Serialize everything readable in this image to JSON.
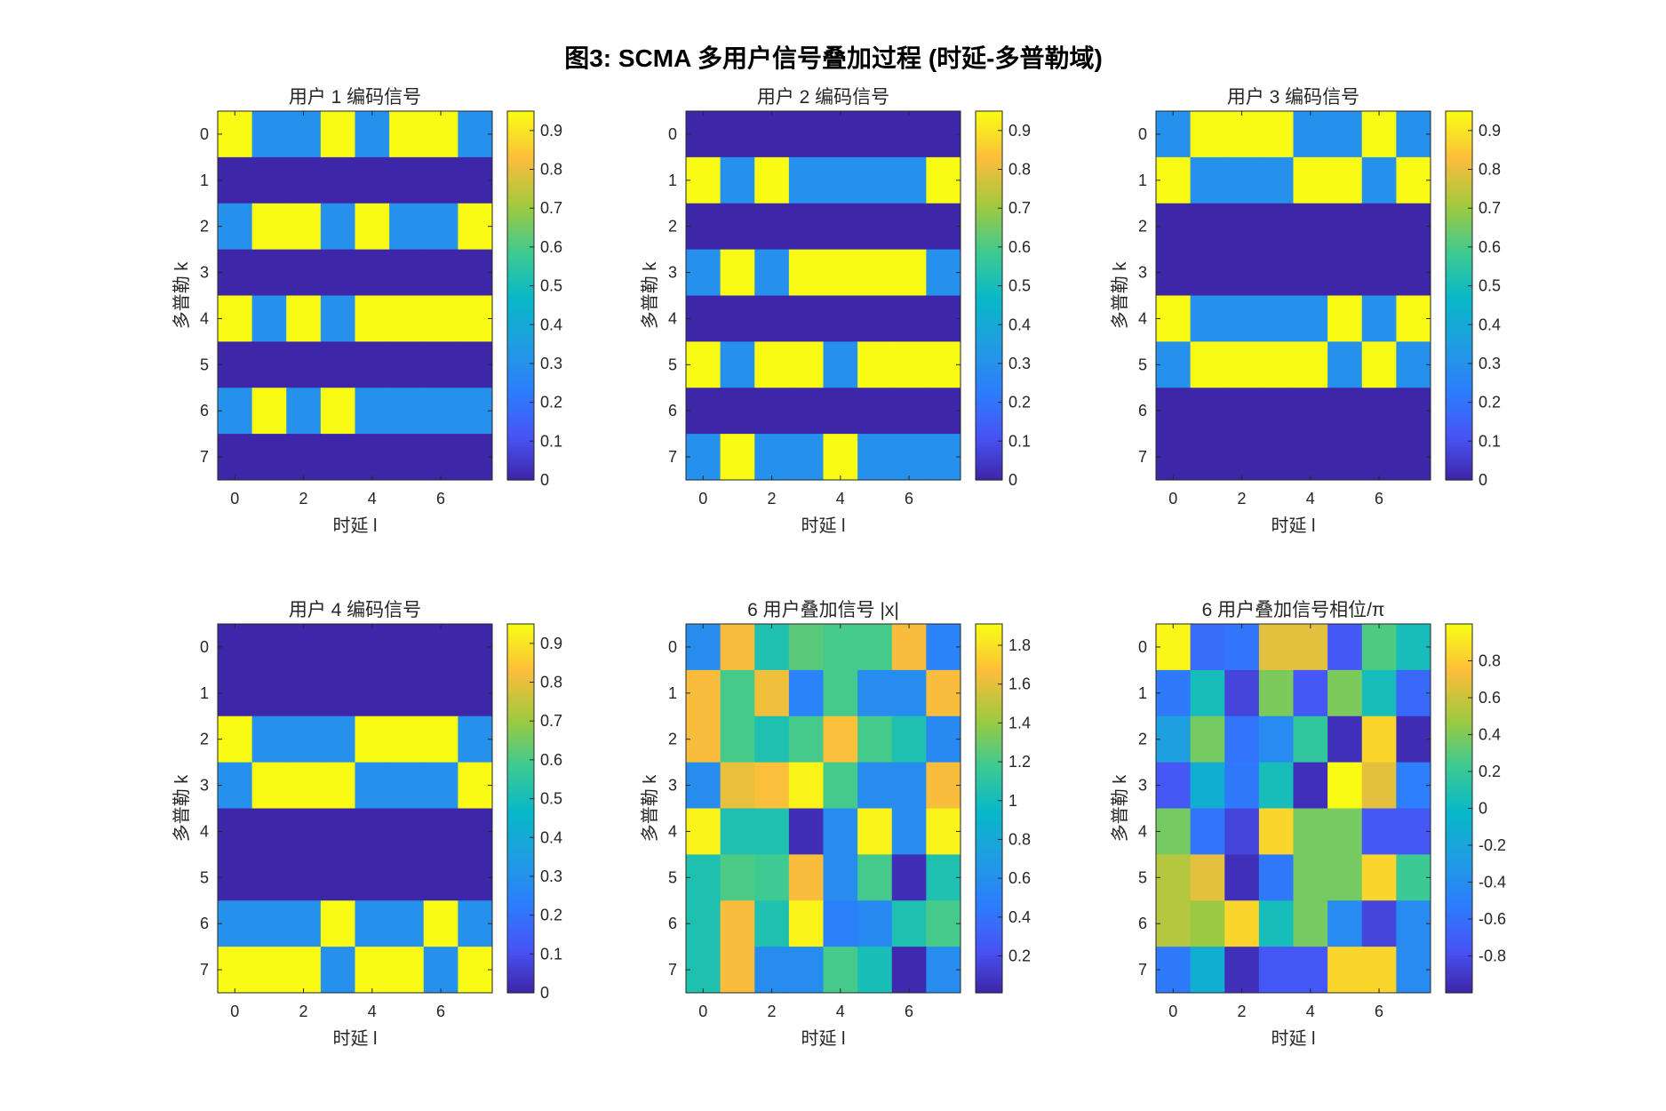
{
  "figure": {
    "title": "图3: SCMA 多用户信号叠加过程 (时延-多普勒域)"
  },
  "chart_data": [
    {
      "type": "heatmap",
      "title": "用户 1 编码信号",
      "xlabel": "时延 l",
      "ylabel": "多普勒 k",
      "xticks": [
        0,
        2,
        4,
        6
      ],
      "yticks": [
        0,
        1,
        2,
        3,
        4,
        5,
        6,
        7
      ],
      "y_direction": "reverse",
      "colormap": "parula",
      "clim": [
        0,
        0.95
      ],
      "colorbar_ticks": [
        0,
        0.1,
        0.2,
        0.3,
        0.4,
        0.5,
        0.6,
        0.7,
        0.8,
        0.9
      ],
      "values": [
        [
          0.95,
          0.3,
          0.3,
          0.95,
          0.3,
          0.95,
          0.95,
          0.3
        ],
        [
          0,
          0,
          0,
          0,
          0,
          0,
          0,
          0
        ],
        [
          0.3,
          0.95,
          0.95,
          0.3,
          0.95,
          0.3,
          0.3,
          0.95
        ],
        [
          0,
          0,
          0,
          0,
          0,
          0,
          0,
          0
        ],
        [
          0.95,
          0.3,
          0.95,
          0.3,
          0.95,
          0.95,
          0.95,
          0.95
        ],
        [
          0,
          0,
          0,
          0,
          0,
          0,
          0,
          0
        ],
        [
          0.3,
          0.95,
          0.3,
          0.95,
          0.3,
          0.3,
          0.3,
          0.3
        ],
        [
          0,
          0,
          0,
          0,
          0,
          0,
          0,
          0
        ]
      ]
    },
    {
      "type": "heatmap",
      "title": "用户 2 编码信号",
      "xlabel": "时延 l",
      "ylabel": "多普勒 k",
      "xticks": [
        0,
        2,
        4,
        6
      ],
      "yticks": [
        0,
        1,
        2,
        3,
        4,
        5,
        6,
        7
      ],
      "y_direction": "reverse",
      "colormap": "parula",
      "clim": [
        0,
        0.95
      ],
      "colorbar_ticks": [
        0,
        0.1,
        0.2,
        0.3,
        0.4,
        0.5,
        0.6,
        0.7,
        0.8,
        0.9
      ],
      "values": [
        [
          0,
          0,
          0,
          0,
          0,
          0,
          0,
          0
        ],
        [
          0.95,
          0.3,
          0.95,
          0.3,
          0.3,
          0.3,
          0.3,
          0.95
        ],
        [
          0,
          0,
          0,
          0,
          0,
          0,
          0,
          0
        ],
        [
          0.3,
          0.95,
          0.3,
          0.95,
          0.95,
          0.95,
          0.95,
          0.3
        ],
        [
          0,
          0,
          0,
          0,
          0,
          0,
          0,
          0
        ],
        [
          0.95,
          0.3,
          0.95,
          0.95,
          0.3,
          0.95,
          0.95,
          0.95
        ],
        [
          0,
          0,
          0,
          0,
          0,
          0,
          0,
          0
        ],
        [
          0.3,
          0.95,
          0.3,
          0.3,
          0.95,
          0.3,
          0.3,
          0.3
        ]
      ]
    },
    {
      "type": "heatmap",
      "title": "用户 3 编码信号",
      "xlabel": "时延 l",
      "ylabel": "多普勒 k",
      "xticks": [
        0,
        2,
        4,
        6
      ],
      "yticks": [
        0,
        1,
        2,
        3,
        4,
        5,
        6,
        7
      ],
      "y_direction": "reverse",
      "colormap": "parula",
      "clim": [
        0,
        0.95
      ],
      "colorbar_ticks": [
        0,
        0.1,
        0.2,
        0.3,
        0.4,
        0.5,
        0.6,
        0.7,
        0.8,
        0.9
      ],
      "values": [
        [
          0.3,
          0.95,
          0.95,
          0.95,
          0.3,
          0.3,
          0.95,
          0.3
        ],
        [
          0.95,
          0.3,
          0.3,
          0.3,
          0.95,
          0.95,
          0.3,
          0.95
        ],
        [
          0,
          0,
          0,
          0,
          0,
          0,
          0,
          0
        ],
        [
          0,
          0,
          0,
          0,
          0,
          0,
          0,
          0
        ],
        [
          0.95,
          0.3,
          0.3,
          0.3,
          0.3,
          0.95,
          0.3,
          0.95
        ],
        [
          0.3,
          0.95,
          0.95,
          0.95,
          0.95,
          0.3,
          0.95,
          0.3
        ],
        [
          0,
          0,
          0,
          0,
          0,
          0,
          0,
          0
        ],
        [
          0,
          0,
          0,
          0,
          0,
          0,
          0,
          0
        ]
      ]
    },
    {
      "type": "heatmap",
      "title": "用户 4 编码信号",
      "xlabel": "时延 l",
      "ylabel": "多普勒 k",
      "xticks": [
        0,
        2,
        4,
        6
      ],
      "yticks": [
        0,
        1,
        2,
        3,
        4,
        5,
        6,
        7
      ],
      "y_direction": "reverse",
      "colormap": "parula",
      "clim": [
        0,
        0.95
      ],
      "colorbar_ticks": [
        0,
        0.1,
        0.2,
        0.3,
        0.4,
        0.5,
        0.6,
        0.7,
        0.8,
        0.9
      ],
      "values": [
        [
          0,
          0,
          0,
          0,
          0,
          0,
          0,
          0
        ],
        [
          0,
          0,
          0,
          0,
          0,
          0,
          0,
          0
        ],
        [
          0.95,
          0.3,
          0.3,
          0.3,
          0.95,
          0.95,
          0.95,
          0.3
        ],
        [
          0.3,
          0.95,
          0.95,
          0.95,
          0.3,
          0.3,
          0.3,
          0.95
        ],
        [
          0,
          0,
          0,
          0,
          0,
          0,
          0,
          0
        ],
        [
          0,
          0,
          0,
          0,
          0,
          0,
          0,
          0
        ],
        [
          0.3,
          0.3,
          0.3,
          0.95,
          0.3,
          0.3,
          0.95,
          0.3
        ],
        [
          0.95,
          0.95,
          0.95,
          0.3,
          0.95,
          0.95,
          0.3,
          0.95
        ]
      ]
    },
    {
      "type": "heatmap",
      "title": "6 用户叠加信号 |x|",
      "xlabel": "时延 l",
      "ylabel": "多普勒 k",
      "xticks": [
        0,
        2,
        4,
        6
      ],
      "yticks": [
        0,
        1,
        2,
        3,
        4,
        5,
        6,
        7
      ],
      "y_direction": "reverse",
      "colormap": "parula",
      "clim": [
        0.01,
        1.91
      ],
      "colorbar_ticks": [
        0.2,
        0.4,
        0.6,
        0.8,
        1,
        1.2,
        1.4,
        1.6,
        1.8
      ],
      "values": [
        [
          0.58,
          1.66,
          1.05,
          1.25,
          1.2,
          1.2,
          1.66,
          0.5
        ],
        [
          1.66,
          1.2,
          1.64,
          0.5,
          1.2,
          0.58,
          0.58,
          1.66
        ],
        [
          1.66,
          1.2,
          1.05,
          1.2,
          1.68,
          1.2,
          1.05,
          0.55
        ],
        [
          0.58,
          1.62,
          1.68,
          1.88,
          1.2,
          0.58,
          0.58,
          1.66
        ],
        [
          1.88,
          1.05,
          1.05,
          0.05,
          0.58,
          1.88,
          0.58,
          1.88
        ],
        [
          1.05,
          1.22,
          1.18,
          1.66,
          0.58,
          1.2,
          0.05,
          1.05
        ],
        [
          1.05,
          1.66,
          1.05,
          1.88,
          0.48,
          0.55,
          1.05,
          1.2
        ],
        [
          1.05,
          1.66,
          0.58,
          0.58,
          1.2,
          1.02,
          0.03,
          0.58
        ]
      ]
    },
    {
      "type": "heatmap",
      "title": "6  用户叠加信号相位/π",
      "xlabel": "时延 l",
      "ylabel": "多普勒 k",
      "xticks": [
        0,
        2,
        4,
        6
      ],
      "yticks": [
        0,
        1,
        2,
        3,
        4,
        5,
        6,
        7
      ],
      "y_direction": "reverse",
      "colormap": "parula",
      "clim": [
        -1,
        1
      ],
      "colorbar_ticks": [
        -0.8,
        -0.6,
        -0.4,
        -0.2,
        0,
        0.2,
        0.4,
        0.6,
        0.8
      ],
      "values": [
        [
          0.98,
          -0.62,
          -0.58,
          0.68,
          0.68,
          -0.75,
          0.28,
          0.05
        ],
        [
          -0.55,
          0.05,
          -0.85,
          0.4,
          -0.75,
          0.4,
          0.05,
          -0.65
        ],
        [
          -0.25,
          0.38,
          -0.58,
          -0.42,
          0.18,
          -0.95,
          0.85,
          -0.97
        ],
        [
          -0.75,
          -0.1,
          -0.55,
          0.05,
          -0.95,
          1.0,
          0.68,
          -0.52
        ],
        [
          0.38,
          -0.58,
          -0.85,
          0.85,
          0.38,
          0.38,
          -0.75,
          -0.75
        ],
        [
          0.55,
          0.68,
          -0.95,
          -0.55,
          0.38,
          0.38,
          0.85,
          0.22
        ],
        [
          0.55,
          0.48,
          0.85,
          0.05,
          0.38,
          -0.42,
          -0.85,
          -0.42
        ],
        [
          -0.55,
          -0.1,
          -0.95,
          -0.75,
          -0.75,
          0.85,
          0.85,
          -0.42
        ]
      ]
    }
  ]
}
